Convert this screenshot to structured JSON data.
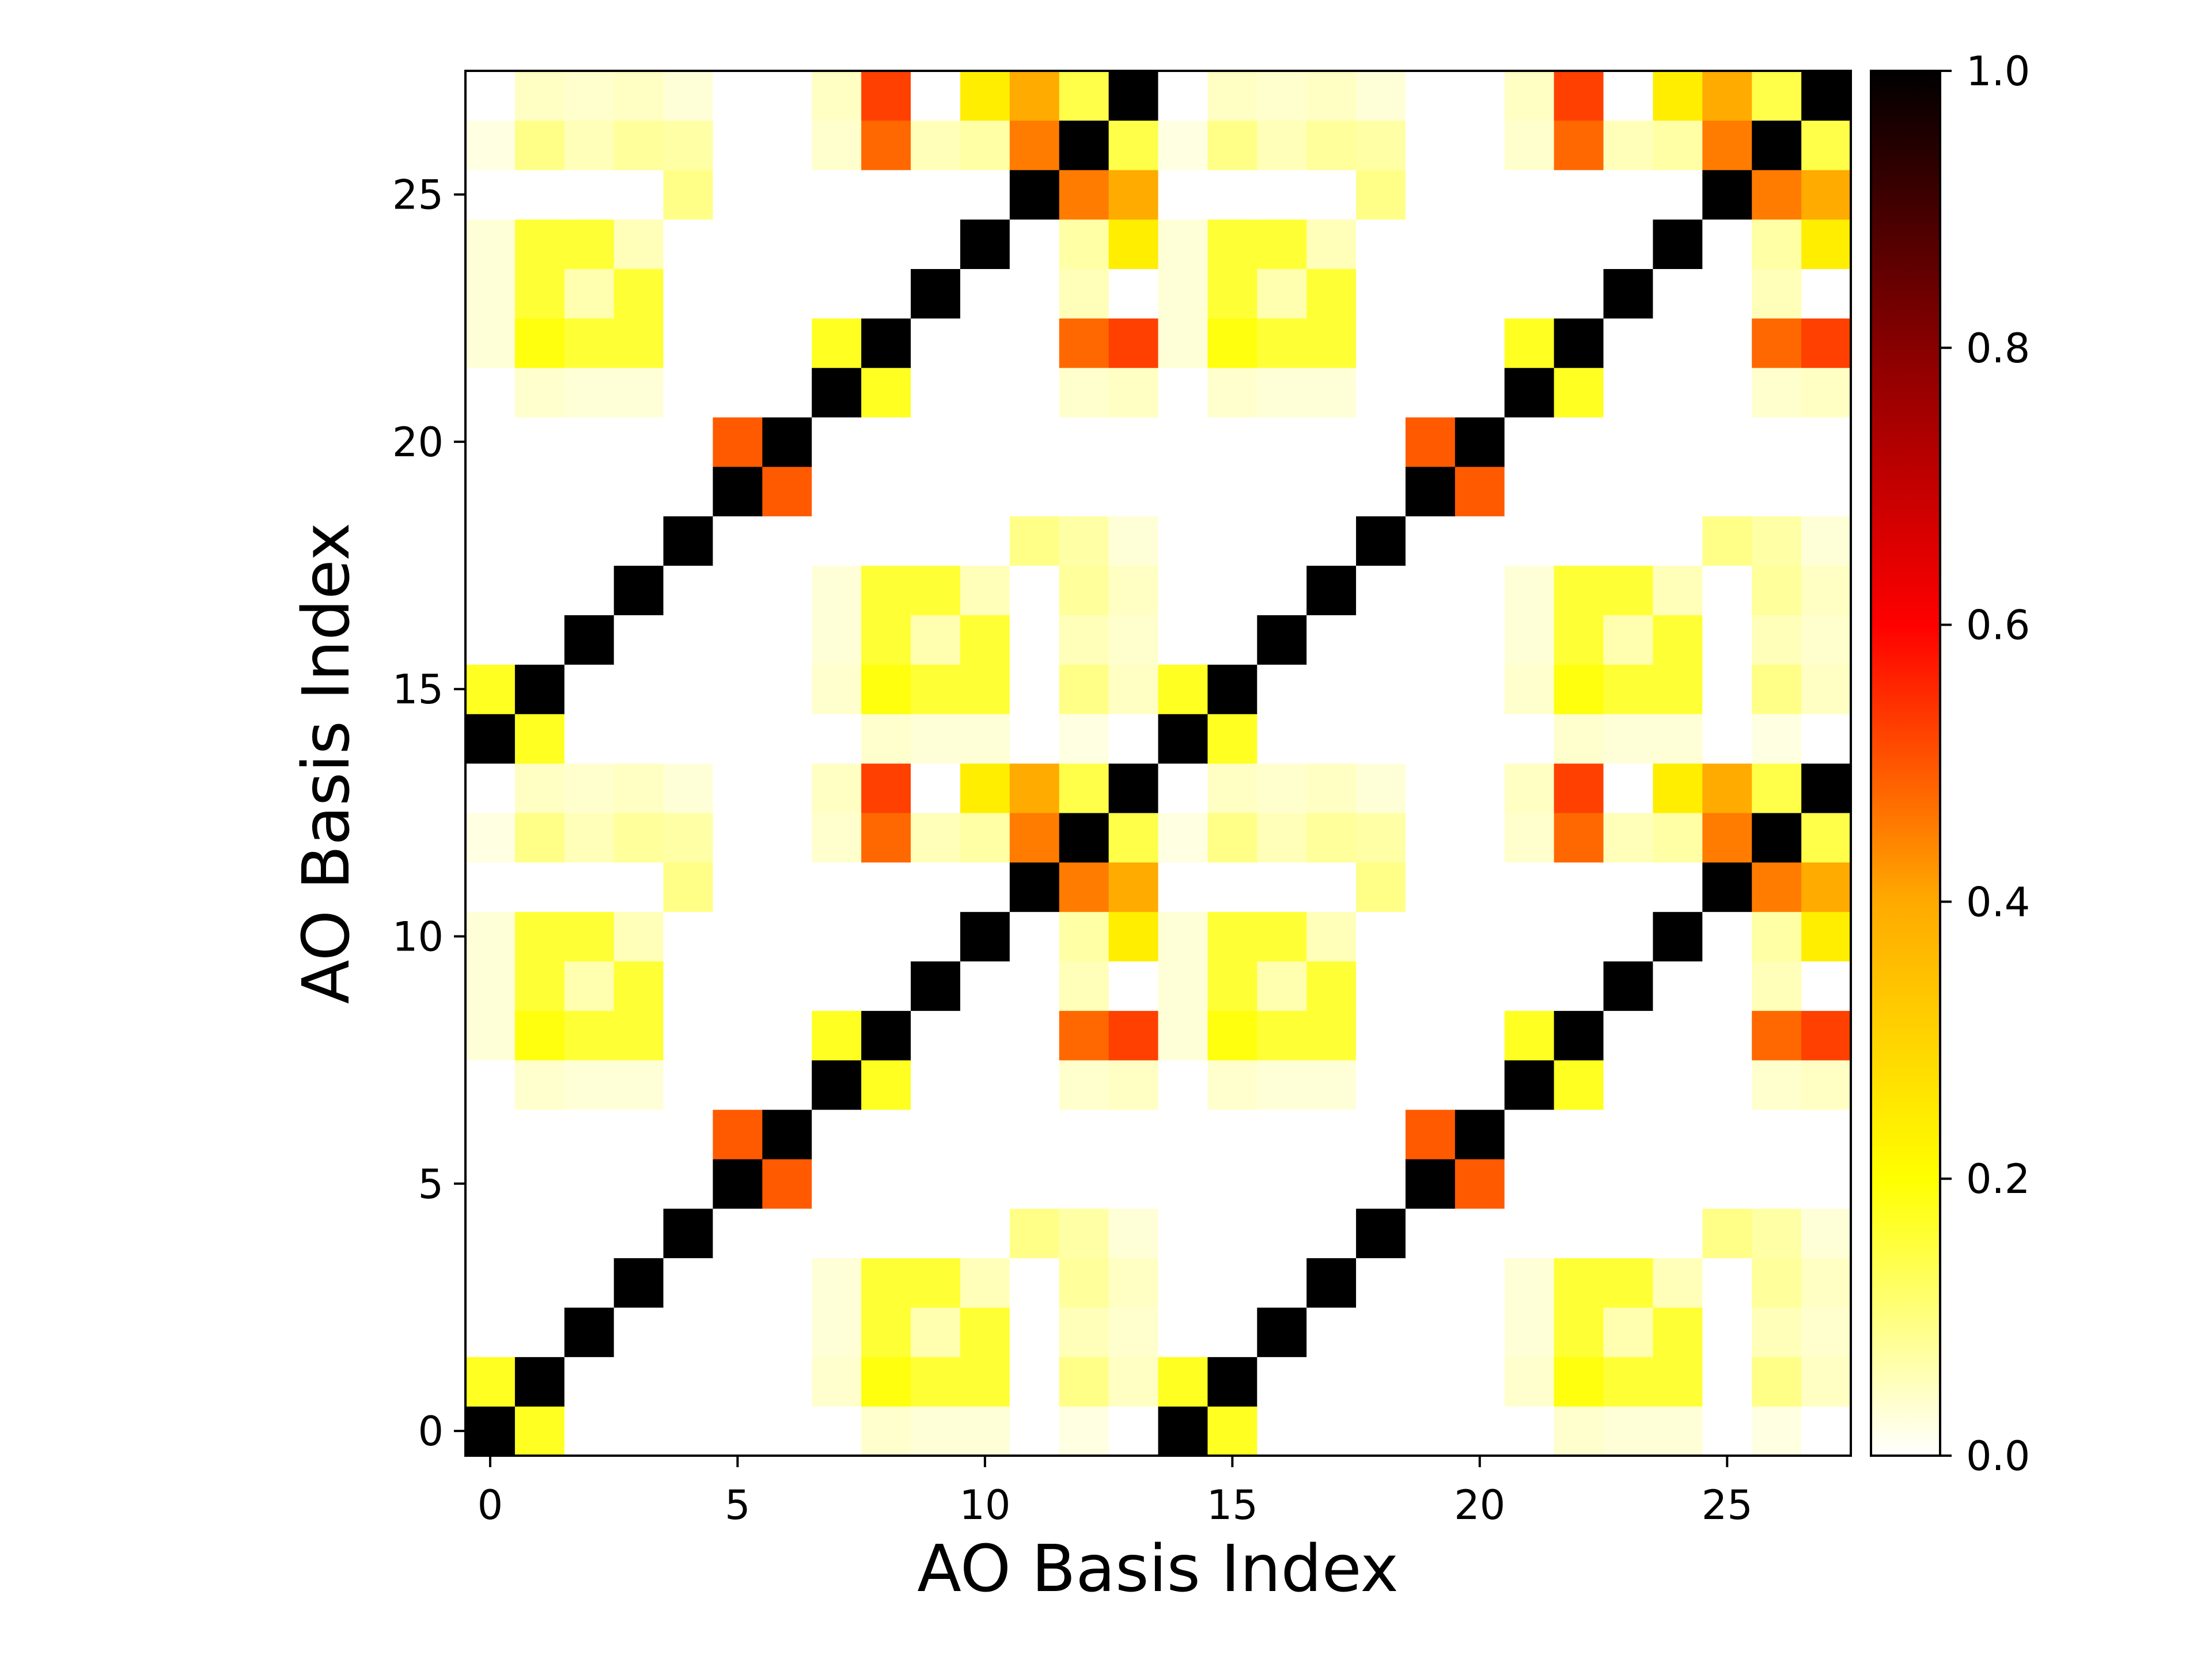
{
  "chart_data": {
    "type": "heatmap",
    "title": "",
    "xlabel": "AO Basis Index",
    "ylabel": "AO Basis Index",
    "size": 28,
    "origin": "lower",
    "colormap": "hot_r",
    "vmin": 0.0,
    "vmax": 1.0,
    "xlim": [
      -0.5,
      27.5
    ],
    "ylim": [
      -0.5,
      27.5
    ],
    "x_ticks": [
      0,
      5,
      10,
      15,
      20,
      25
    ],
    "y_ticks": [
      0,
      5,
      10,
      15,
      20,
      25
    ],
    "x_tick_labels": [
      "0",
      "5",
      "10",
      "15",
      "20",
      "25"
    ],
    "y_tick_labels": [
      "0",
      "5",
      "10",
      "15",
      "20",
      "25"
    ],
    "colorbar": {
      "position": "right",
      "ticks": [
        0.0,
        0.2,
        0.4,
        0.6,
        0.8,
        1.0
      ],
      "tick_labels": [
        "0.0",
        "0.2",
        "0.4",
        "0.6",
        "0.8",
        "1.0"
      ]
    },
    "block_size": 14,
    "block_values": [
      [
        1.0,
        0.22,
        0.0,
        0.0,
        0.0,
        0.0,
        0.0,
        0.0,
        0.05,
        0.04,
        0.04,
        0.0,
        0.03,
        0.0
      ],
      [
        0.22,
        1.0,
        0.0,
        0.0,
        0.0,
        0.0,
        0.0,
        0.05,
        0.24,
        0.2,
        0.2,
        0.0,
        0.12,
        0.06
      ],
      [
        0.0,
        0.0,
        1.0,
        0.0,
        0.0,
        0.0,
        0.0,
        0.04,
        0.2,
        0.08,
        0.2,
        0.0,
        0.07,
        0.05
      ],
      [
        0.0,
        0.0,
        0.0,
        1.0,
        0.0,
        0.0,
        0.0,
        0.04,
        0.2,
        0.2,
        0.07,
        0.0,
        0.1,
        0.06
      ],
      [
        0.0,
        0.0,
        0.0,
        0.0,
        1.0,
        0.0,
        0.0,
        0.0,
        0.0,
        0.0,
        0.0,
        0.12,
        0.09,
        0.04
      ],
      [
        0.0,
        0.0,
        0.0,
        0.0,
        0.0,
        1.0,
        0.5,
        0.0,
        0.0,
        0.0,
        0.0,
        0.0,
        0.0,
        0.0
      ],
      [
        0.0,
        0.0,
        0.0,
        0.0,
        0.0,
        0.5,
        1.0,
        0.0,
        0.0,
        0.0,
        0.0,
        0.0,
        0.0,
        0.0
      ],
      [
        0.0,
        0.05,
        0.04,
        0.04,
        0.0,
        0.0,
        0.0,
        1.0,
        0.22,
        0.0,
        0.0,
        0.0,
        0.05,
        0.06
      ],
      [
        0.04,
        0.24,
        0.2,
        0.2,
        0.0,
        0.0,
        0.0,
        0.22,
        1.0,
        0.0,
        0.0,
        0.0,
        0.48,
        0.54
      ],
      [
        0.04,
        0.2,
        0.08,
        0.2,
        0.0,
        0.0,
        0.0,
        0.0,
        0.0,
        1.0,
        0.0,
        0.0,
        0.07,
        0.0
      ],
      [
        0.04,
        0.2,
        0.2,
        0.07,
        0.0,
        0.0,
        0.0,
        0.0,
        0.0,
        0.0,
        1.0,
        0.0,
        0.09,
        0.28
      ],
      [
        0.0,
        0.0,
        0.0,
        0.0,
        0.12,
        0.0,
        0.0,
        0.0,
        0.0,
        0.0,
        0.0,
        1.0,
        0.45,
        0.38
      ],
      [
        0.03,
        0.12,
        0.07,
        0.1,
        0.09,
        0.0,
        0.0,
        0.05,
        0.48,
        0.07,
        0.09,
        0.45,
        1.0,
        0.18
      ],
      [
        0.0,
        0.06,
        0.05,
        0.06,
        0.04,
        0.0,
        0.0,
        0.06,
        0.54,
        0.0,
        0.28,
        0.38,
        0.18,
        1.0
      ]
    ]
  }
}
